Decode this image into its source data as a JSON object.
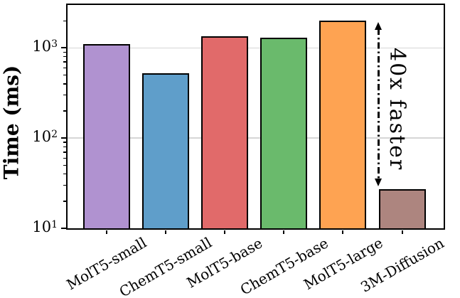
{
  "chart_data": {
    "type": "bar",
    "title": "",
    "xlabel": "",
    "ylabel": "Time (ms)",
    "yscale": "log",
    "ylim": [
      10,
      3000
    ],
    "grid": true,
    "grid_color": "#d6d6d6",
    "categories": [
      "MolT5-small",
      "ChemT5-small",
      "MolT5-base",
      "ChemT5-base",
      "MolT5-large",
      "3M-Diffusion"
    ],
    "values": [
      1100,
      520,
      1360,
      1290,
      2000,
      27
    ],
    "bar_colors": [
      "#b092d0",
      "#5f9eca",
      "#e16a6a",
      "#6aba6c",
      "#fea352",
      "#ad857f"
    ],
    "bar_edge_color": "#000000",
    "yticks": [
      {
        "base": "10",
        "exp": "1",
        "value": 10
      },
      {
        "base": "10",
        "exp": "2",
        "value": 100
      },
      {
        "base": "10",
        "exp": "3",
        "value": 1000
      }
    ],
    "annotation": {
      "text": "40x faster"
    }
  }
}
